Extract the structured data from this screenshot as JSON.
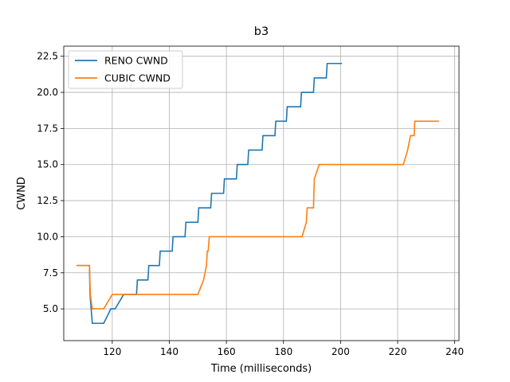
{
  "chart_data": {
    "type": "line",
    "title": "b3",
    "xlabel": "Time (milliseconds)",
    "ylabel": "CWND",
    "xlim": [
      103,
      241.5
    ],
    "ylim": [
      2.8,
      23.2
    ],
    "xticks": [
      120,
      140,
      160,
      180,
      200,
      220,
      240
    ],
    "yticks": [
      5.0,
      7.5,
      10.0,
      12.5,
      15.0,
      17.5,
      20.0,
      22.5
    ],
    "xtick_labels": [
      "120",
      "140",
      "160",
      "180",
      "200",
      "220",
      "240"
    ],
    "ytick_labels": [
      "5.0",
      "7.5",
      "10.0",
      "12.5",
      "15.0",
      "17.5",
      "20.0",
      "22.5"
    ],
    "grid": true,
    "legend_position": "top-left",
    "series": [
      {
        "name": "RENO CWND",
        "color": "#1f77b4",
        "x": [
          107.5,
          112,
          112.2,
          113,
          117,
          119.5,
          121,
          124,
          128.5,
          128.8,
          132.5,
          132.8,
          136.5,
          136.8,
          141,
          141.3,
          145.5,
          145.8,
          150,
          150.3,
          154.5,
          154.8,
          159,
          159.3,
          163.5,
          163.8,
          167.5,
          167.8,
          172.5,
          172.8,
          177,
          177.3,
          181,
          181.3,
          186,
          186.3,
          190.5,
          190.8,
          195,
          195.3,
          199,
          199.3,
          200.5
        ],
        "y": [
          8,
          8,
          6,
          4,
          4,
          5,
          5,
          6,
          6,
          7,
          7,
          8,
          8,
          9,
          9,
          10,
          10,
          11,
          11,
          12,
          12,
          13,
          13,
          14,
          14,
          15,
          15,
          16,
          16,
          17,
          17,
          18,
          18,
          19,
          19,
          20,
          20,
          21,
          21,
          22,
          22,
          22,
          22
        ]
      },
      {
        "name": "CUBIC CWND",
        "color": "#ff7f0e",
        "x": [
          107.5,
          112,
          112.3,
          113,
          117,
          120,
          150,
          152,
          153,
          153.3,
          153.6,
          154,
          186.5,
          188,
          188.3,
          190.5,
          190.8,
          192.5,
          222,
          223.5,
          224.5,
          225,
          225.8,
          226,
          234.5
        ],
        "y": [
          8,
          8,
          6,
          5,
          5,
          6,
          6,
          7,
          8,
          9,
          9,
          10,
          10,
          11,
          12,
          12,
          14,
          15,
          15,
          16,
          17,
          17,
          17,
          18,
          18
        ]
      }
    ]
  }
}
